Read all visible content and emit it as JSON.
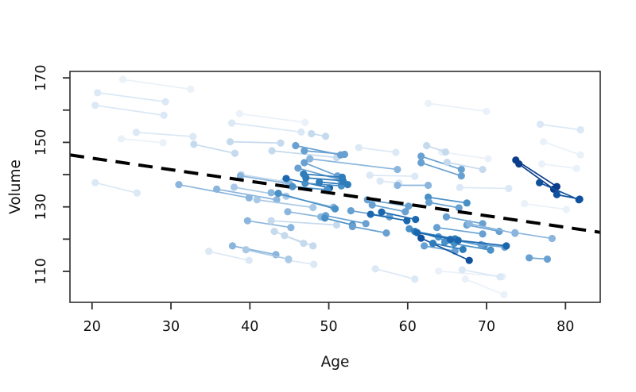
{
  "colors": {
    "background": "#ffffff",
    "frame": "#2e2e2e",
    "text": "#111111",
    "trend": "#000000"
  },
  "chart_data": {
    "type": "scatter",
    "subtype": "longitudinal-spaghetti",
    "title": "",
    "xlabel": "Age",
    "ylabel": "Volume",
    "xlim": [
      17.2,
      84.4
    ],
    "ylim": [
      100.4,
      172.0
    ],
    "grid": false,
    "legend": "none",
    "x_ticks": [
      20,
      30,
      40,
      50,
      60,
      70,
      80
    ],
    "x_tick_labels": [
      "20",
      "30",
      "40",
      "50",
      "60",
      "70",
      "80"
    ],
    "y_ticks": [
      110,
      120,
      130,
      140,
      150,
      160,
      170
    ],
    "y_tick_labels": [
      "110",
      "",
      "130",
      "",
      "150",
      "",
      "170"
    ],
    "trend_line": {
      "x1": 17.2,
      "y1": 146.1,
      "x2": 84.4,
      "y2": 122.1,
      "style": "dashed",
      "color": "#000000",
      "width": 4,
      "dash": [
        18,
        11
      ]
    },
    "shade_palette": [
      "#eaf1f9",
      "#dbe8f5",
      "#c6daee",
      "#a9c9e6",
      "#8ab5dc",
      "#68a1d1",
      "#4890c6",
      "#2f7cba",
      "#1b67ae",
      "#10519e",
      "#0b3d8a"
    ],
    "point_radius": 4.6,
    "segment_width": 1.7,
    "segments_format": [
      "age1",
      "volume1",
      "age2",
      "volume2",
      "shade_index"
    ],
    "segments": [
      [
        23.9,
        169.5,
        32.5,
        166.5,
        0
      ],
      [
        20.7,
        165.4,
        29.3,
        162.6,
        1
      ],
      [
        20.4,
        161.5,
        29.1,
        158.4,
        1
      ],
      [
        25.6,
        153.1,
        32.8,
        151.8,
        1
      ],
      [
        23.7,
        151.1,
        29.0,
        149.9,
        0
      ],
      [
        32.9,
        149.4,
        38.1,
        146.6,
        2
      ],
      [
        37.5,
        150.2,
        43.9,
        149.8,
        2
      ],
      [
        37.7,
        156.0,
        46.5,
        153.2,
        1
      ],
      [
        38.7,
        158.9,
        47.0,
        156.2,
        0
      ],
      [
        20.4,
        137.5,
        25.7,
        134.3,
        1
      ],
      [
        42.8,
        147.4,
        51.0,
        145.3,
        2
      ],
      [
        47.8,
        152.7,
        49.6,
        151.9,
        2
      ],
      [
        53.8,
        148.4,
        58.5,
        146.9,
        1
      ],
      [
        62.6,
        162.1,
        70.0,
        159.6,
        0
      ],
      [
        64.3,
        147.0,
        70.2,
        144.9,
        0
      ],
      [
        76.8,
        155.6,
        81.9,
        153.9,
        1
      ],
      [
        77.2,
        150.2,
        81.9,
        146.1,
        0
      ],
      [
        77.0,
        143.3,
        81.4,
        141.9,
        0
      ],
      [
        66.6,
        136.0,
        72.8,
        135.7,
        1
      ],
      [
        74.8,
        131.0,
        80.1,
        129.2,
        0
      ],
      [
        34.8,
        116.2,
        39.9,
        113.4,
        1
      ],
      [
        43.1,
        122.4,
        46.8,
        118.7,
        2
      ],
      [
        44.4,
        121.1,
        48.0,
        117.9,
        2
      ],
      [
        44.9,
        113.4,
        48.1,
        112.2,
        1
      ],
      [
        55.9,
        110.8,
        60.9,
        107.6,
        1
      ],
      [
        63.9,
        110.1,
        72.0,
        108.4,
        0
      ],
      [
        66.9,
        110.5,
        71.7,
        108.3,
        1
      ],
      [
        67.3,
        107.6,
        72.2,
        102.8,
        0
      ],
      [
        56.5,
        138.0,
        58.9,
        137.4,
        1
      ],
      [
        55.2,
        139.8,
        60.9,
        139.5,
        1
      ],
      [
        38.9,
        140.0,
        44.3,
        137.9,
        2
      ],
      [
        31.0,
        136.9,
        39.9,
        132.8,
        4
      ],
      [
        35.8,
        135.5,
        43.4,
        132.2,
        4
      ],
      [
        38.0,
        136.1,
        44.6,
        133.3,
        3
      ],
      [
        38.8,
        139.6,
        45.0,
        137.2,
        4
      ],
      [
        37.8,
        117.9,
        43.3,
        115.2,
        4
      ],
      [
        39.5,
        116.7,
        44.9,
        113.8,
        3
      ],
      [
        39.7,
        125.7,
        45.2,
        123.6,
        4
      ],
      [
        42.7,
        125.7,
        51.0,
        124.4,
        2
      ],
      [
        40.9,
        132.2,
        48.0,
        129.8,
        3
      ],
      [
        42.7,
        134.4,
        50.6,
        129.9,
        4
      ],
      [
        43.6,
        134.2,
        50.8,
        129.4,
        6
      ],
      [
        44.8,
        128.5,
        49.0,
        126.9,
        4
      ],
      [
        45.8,
        149.0,
        51.5,
        146.1,
        5
      ],
      [
        46.9,
        147.4,
        52.0,
        146.3,
        5
      ],
      [
        47.6,
        144.9,
        58.7,
        141.6,
        4
      ],
      [
        46.9,
        143.7,
        51.1,
        139.6,
        5
      ],
      [
        46.1,
        142.0,
        51.5,
        138.4,
        5
      ],
      [
        49.6,
        127.3,
        54.7,
        124.8,
        5
      ],
      [
        49.5,
        126.5,
        53.0,
        124.4,
        6
      ],
      [
        52.8,
        128.8,
        57.7,
        126.9,
        5
      ],
      [
        53.0,
        123.9,
        57.3,
        121.9,
        5
      ],
      [
        54.9,
        132.2,
        60.1,
        130.2,
        5
      ],
      [
        55.5,
        130.6,
        59.7,
        128.5,
        5
      ],
      [
        58.7,
        136.7,
        62.6,
        136.7,
        4
      ],
      [
        61.7,
        145.7,
        66.8,
        141.6,
        5
      ],
      [
        61.7,
        143.7,
        66.8,
        139.6,
        5
      ],
      [
        62.4,
        149.0,
        64.8,
        147.0,
        2
      ],
      [
        65.0,
        143.8,
        69.5,
        141.6,
        2
      ],
      [
        62.6,
        133.0,
        67.5,
        131.2,
        6
      ],
      [
        62.7,
        131.4,
        66.5,
        129.7,
        5
      ],
      [
        64.9,
        126.9,
        69.5,
        124.8,
        5
      ],
      [
        67.5,
        124.4,
        71.6,
        122.4,
        5
      ],
      [
        67.8,
        124.8,
        73.6,
        121.8,
        4
      ],
      [
        63.7,
        123.6,
        69.5,
        121.6,
        5
      ],
      [
        63.9,
        120.7,
        69.7,
        117.9,
        6
      ],
      [
        64.7,
        119.1,
        70.5,
        116.6,
        6
      ],
      [
        62.1,
        117.9,
        66.0,
        116.3,
        5
      ],
      [
        73.6,
        122.0,
        78.3,
        120.2,
        4
      ],
      [
        75.4,
        114.2,
        77.7,
        113.8,
        5
      ],
      [
        69.3,
        118.3,
        72.3,
        117.5,
        5
      ],
      [
        44.6,
        138.8,
        50.1,
        135.9,
        8
      ],
      [
        45.4,
        136.3,
        49.8,
        135.3,
        6
      ],
      [
        47.0,
        137.3,
        51.6,
        136.5,
        6
      ],
      [
        48.8,
        137.7,
        52.4,
        136.9,
        7
      ],
      [
        46.8,
        140.2,
        51.7,
        139.2,
        7
      ],
      [
        47.1,
        139.0,
        51.8,
        138.1,
        7
      ],
      [
        56.7,
        128.4,
        61.0,
        126.1,
        8
      ],
      [
        55.3,
        127.7,
        59.9,
        125.7,
        8
      ],
      [
        60.2,
        123.2,
        65.9,
        118.7,
        6
      ],
      [
        60.9,
        122.4,
        66.0,
        120.1,
        7
      ],
      [
        61.2,
        122.0,
        66.4,
        119.6,
        8
      ],
      [
        61.7,
        120.3,
        67.8,
        113.4,
        9
      ],
      [
        65.4,
        119.9,
        72.5,
        117.9,
        8
      ],
      [
        63.2,
        118.7,
        67.0,
        116.8,
        7
      ],
      [
        73.7,
        144.5,
        78.9,
        136.3,
        10
      ],
      [
        74.1,
        143.3,
        78.5,
        135.5,
        10
      ],
      [
        76.7,
        137.5,
        81.7,
        132.2,
        9
      ],
      [
        78.9,
        133.8,
        81.8,
        132.4,
        9
      ]
    ]
  }
}
